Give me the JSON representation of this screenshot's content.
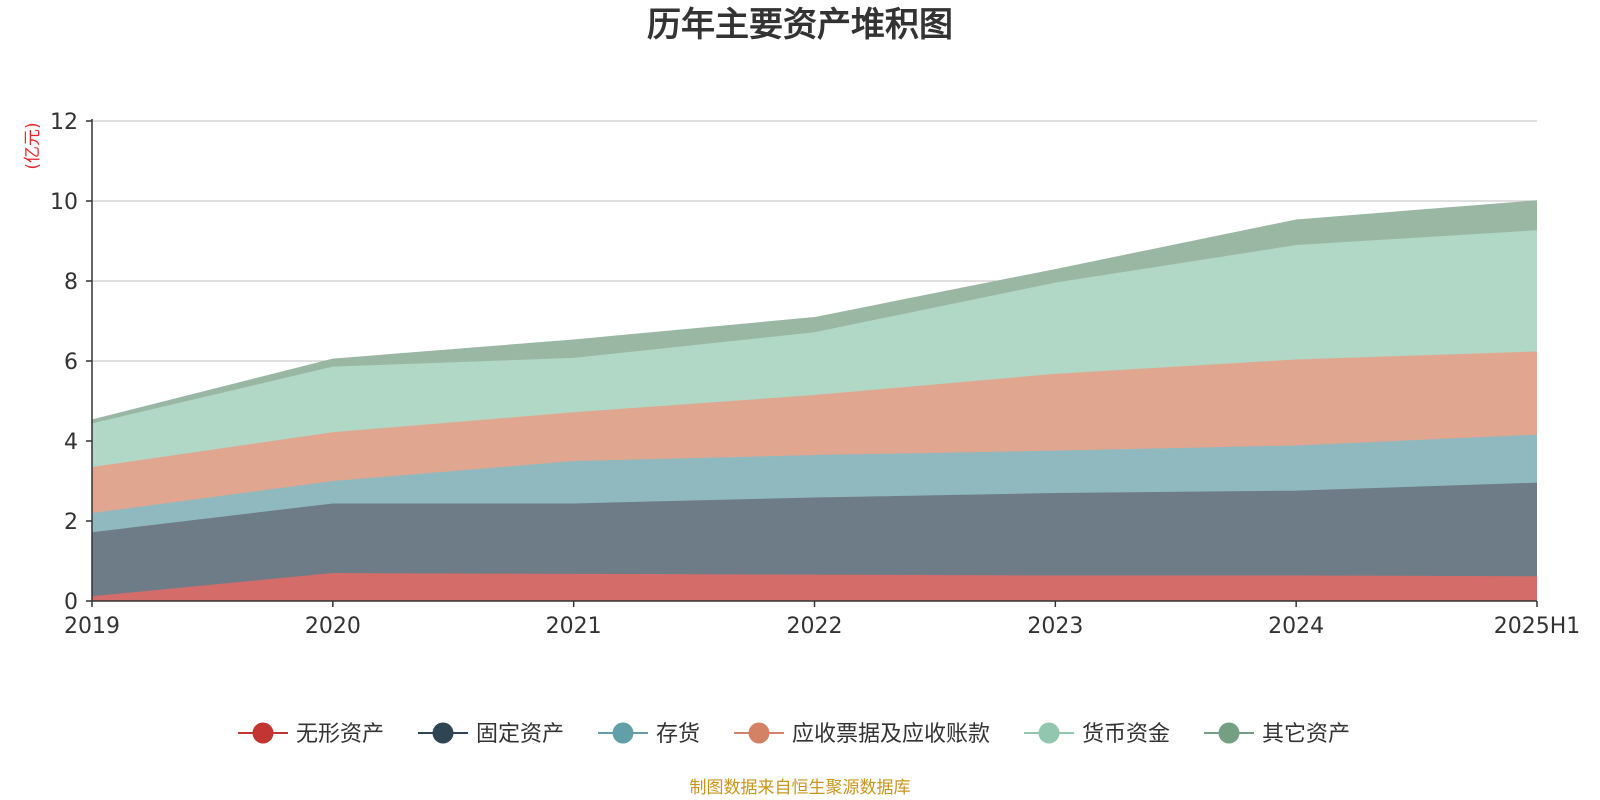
{
  "chart_data": {
    "type": "area",
    "stacked": true,
    "title": "历年主要资产堆积图",
    "unit": "(亿元)",
    "categories": [
      "2019",
      "2020",
      "2021",
      "2022",
      "2023",
      "2024",
      "2025H1"
    ],
    "ylim": [
      0,
      12
    ],
    "yticks": [
      "0",
      "2",
      "4",
      "6",
      "8",
      "10",
      "12"
    ],
    "grid": true,
    "legend_position": "bottom",
    "series": [
      {
        "name": "无形资产",
        "color": "#c23531",
        "fill": "#d46c6a",
        "values": [
          0.1,
          0.68,
          0.66,
          0.64,
          0.62,
          0.62,
          0.6
        ]
      },
      {
        "name": "固定资产",
        "color": "#2f4554",
        "fill": "#6e7c87",
        "values": [
          1.6,
          1.74,
          1.76,
          1.93,
          2.06,
          2.12,
          2.34
        ]
      },
      {
        "name": "存货",
        "color": "#61a0a8",
        "fill": "#90b9bf",
        "values": [
          0.48,
          0.56,
          1.06,
          1.06,
          1.06,
          1.13,
          1.2
        ]
      },
      {
        "name": "应收票据及应收账款",
        "color": "#d48265",
        "fill": "#e0a690",
        "values": [
          1.15,
          1.22,
          1.22,
          1.5,
          1.92,
          2.15,
          2.08
        ]
      },
      {
        "name": "货币资金",
        "color": "#91c7ae",
        "fill": "#b1d7c6",
        "values": [
          1.09,
          1.64,
          1.36,
          1.57,
          2.28,
          2.86,
          3.03
        ]
      },
      {
        "name": "其它资产",
        "color": "#749f83",
        "fill": "#9ab7a4",
        "values": [
          0.1,
          0.2,
          0.46,
          0.38,
          0.34,
          0.64,
          0.75
        ]
      }
    ]
  },
  "footer": {
    "source": "制图数据来自恒生聚源数据库"
  },
  "colors": {
    "title": "#333333",
    "unit": "#e8272b",
    "source": "#c8961e",
    "axis": "#333333",
    "grid": "#cccccc"
  }
}
